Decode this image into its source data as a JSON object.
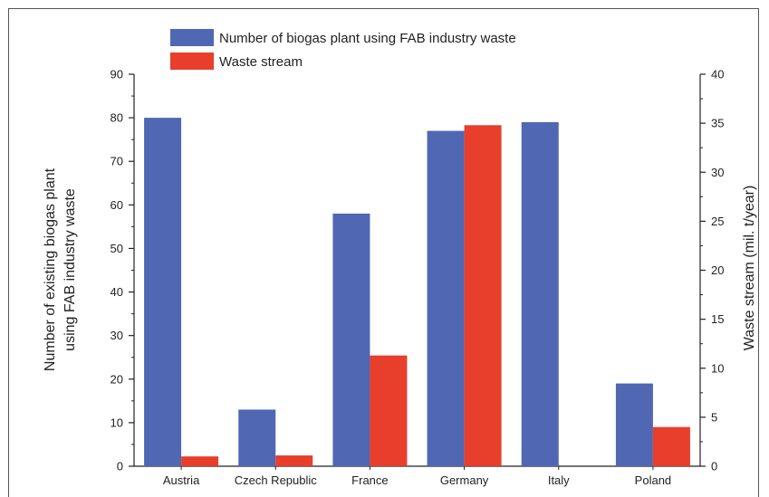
{
  "chart_data": {
    "type": "bar",
    "title": "",
    "categories": [
      "Austria",
      "Czech Republic",
      "France",
      "Germany",
      "Italy",
      "Poland"
    ],
    "series": [
      {
        "name": "Number of biogas plant using FAB industry waste",
        "axis": "left",
        "color": "#5067b4",
        "values": [
          80,
          13,
          58,
          77,
          79,
          19
        ]
      },
      {
        "name": "Waste stream",
        "axis": "right",
        "color": "#e83e2c",
        "values": [
          1.0,
          1.1,
          11.3,
          34.8,
          0,
          4.0
        ]
      }
    ],
    "ylabel_left": [
      "Number of existing biogas plant",
      "using FAB industry waste"
    ],
    "ylabel_right": "Waste stream (mil. t/year)",
    "ylim_left": [
      0,
      90
    ],
    "yticks_left": [
      0,
      10,
      20,
      30,
      40,
      50,
      60,
      70,
      80,
      90
    ],
    "ylim_right": [
      0,
      40
    ],
    "yticks_right": [
      0,
      5,
      10,
      15,
      20,
      25,
      30,
      35,
      40
    ],
    "grid": false,
    "legend_position": "top-left"
  }
}
